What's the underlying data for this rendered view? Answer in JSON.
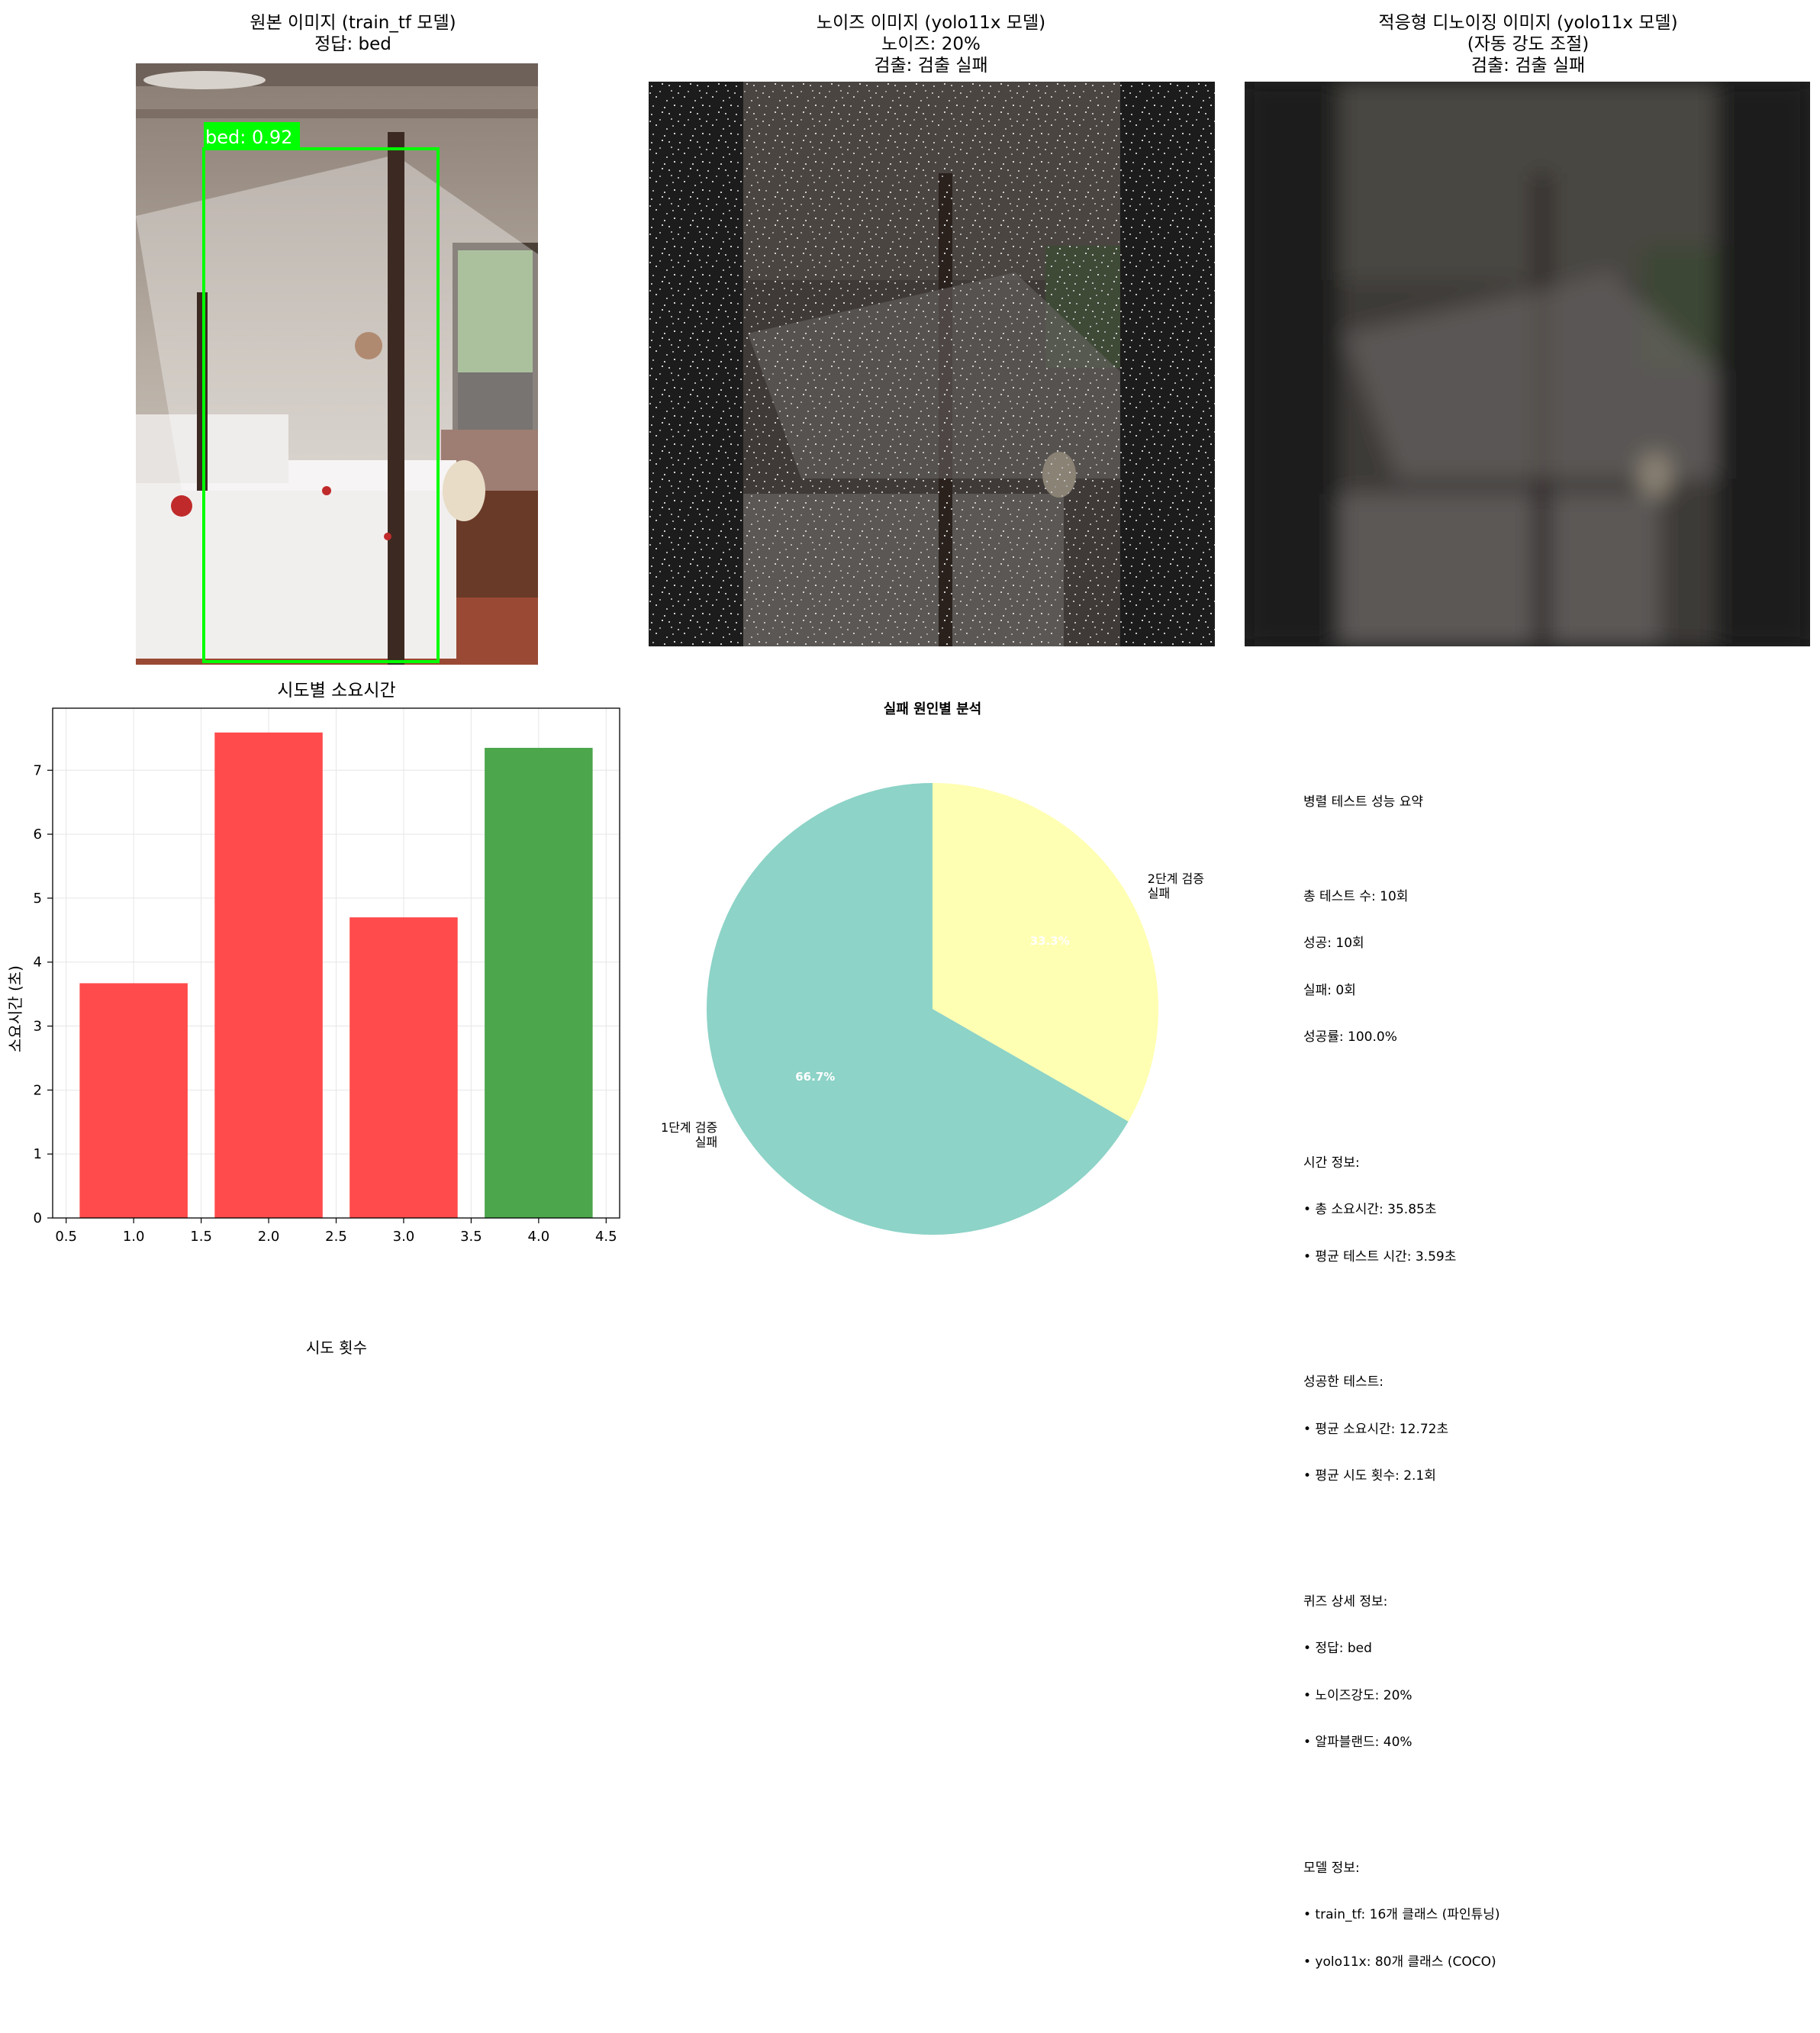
{
  "panels": {
    "original": {
      "title_line1": "원본 이미지 (train_tf 모델)",
      "title_line2": "정답: bed",
      "detection_label": "bed: 0.92"
    },
    "noisy": {
      "title_line1": "노이즈 이미지 (yolo11x 모델)",
      "title_line2": "노이즈: 20%",
      "title_line3": "검출: 검출 실패"
    },
    "denoised": {
      "title_line1": "적응형 디노이징 이미지 (yolo11x 모델)",
      "title_line2": "(자동 강도 조절)",
      "title_line3": "검출: 검출 실패"
    }
  },
  "colors": {
    "bar_fail": "#ff4b4b",
    "bar_success": "#4ca64c",
    "pie_stage1": "#8dd3c7",
    "pie_stage2": "#ffffb3",
    "detection_box": "#00ff00"
  },
  "chart_data": [
    {
      "type": "bar",
      "title": "시도별 소요시간",
      "xlabel": "시도 횟수",
      "ylabel": "소요시간 (초)",
      "x": [
        1,
        2,
        3,
        4
      ],
      "values": [
        3.67,
        7.59,
        4.7,
        7.35
      ],
      "bar_status": [
        "fail",
        "fail",
        "fail",
        "success"
      ],
      "xlim": [
        0.4,
        4.6
      ],
      "ylim": [
        0,
        7.97
      ],
      "xticks": [
        "0.5",
        "1.0",
        "1.5",
        "2.0",
        "2.5",
        "3.0",
        "3.5",
        "4.0",
        "4.5"
      ],
      "yticks": [
        "0",
        "1",
        "2",
        "3",
        "4",
        "5",
        "6",
        "7"
      ],
      "grid": true
    },
    {
      "type": "pie",
      "title": "실패 원인별 분석",
      "slices": [
        {
          "label_line1": "1단계 검증",
          "label_line2": "실패",
          "value": 66.7,
          "pct_label": "66.7%"
        },
        {
          "label_line1": "2단계 검증",
          "label_line2": "실패",
          "value": 33.3,
          "pct_label": "33.3%"
        }
      ]
    }
  ],
  "summary": {
    "title": "병렬 테스트 성능 요약",
    "blocks": [
      [
        "총 테스트 수: 10회",
        "성공: 10회",
        "실패: 0회",
        "성공률: 100.0%"
      ],
      [
        "시간 정보:",
        "• 총 소요시간: 35.85초",
        "• 평균 테스트 시간: 3.59초"
      ],
      [
        "성공한 테스트:",
        "• 평균 소요시간: 12.72초",
        "• 평균 시도 횟수: 2.1회"
      ],
      [
        "퀴즈 상세 정보:",
        "• 정답: bed",
        "• 노이즈강도: 20%",
        "• 알파블랜드: 40%"
      ],
      [
        "모델 정보:",
        "• train_tf: 16개 클래스 (파인튜닝)",
        "• yolo11x: 80개 클래스 (COCO)"
      ]
    ]
  }
}
